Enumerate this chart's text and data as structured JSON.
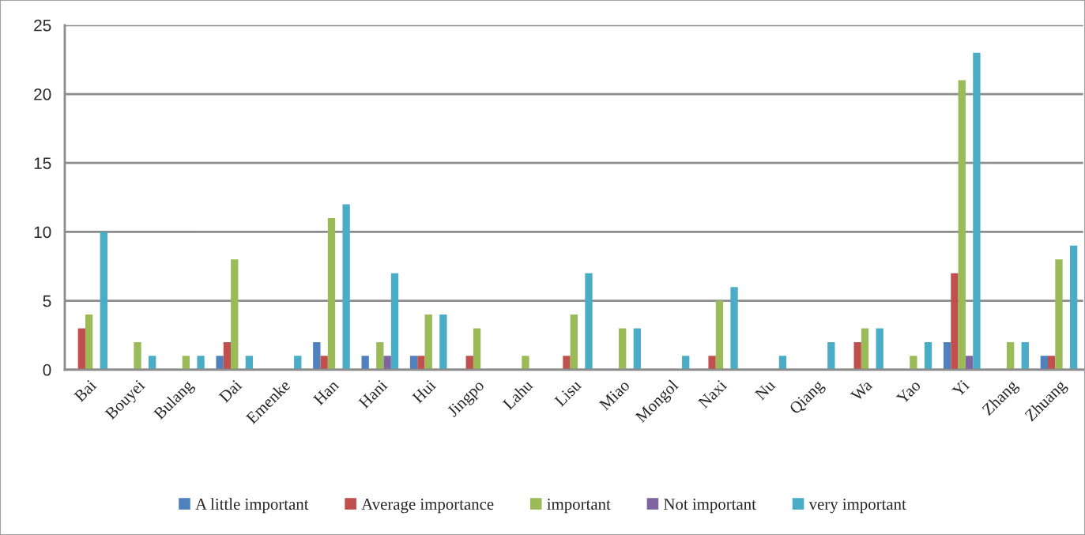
{
  "chart_data": {
    "type": "bar",
    "categories": [
      "Bai",
      "Bouyei",
      "Bulang",
      "Dai",
      "Emenke",
      "Han",
      "Hani",
      "Hui",
      "Jingpo",
      "Lahu",
      "Lisu",
      "Miao",
      "Mongol",
      "Naxi",
      "Nu",
      "Qiang",
      "Wa",
      "Yao",
      "Yi",
      "Zhang",
      "Zhuang"
    ],
    "series": [
      {
        "name": "A little important",
        "color": "#4f81bd",
        "values": [
          null,
          null,
          null,
          1,
          null,
          2,
          1,
          1,
          null,
          null,
          null,
          null,
          null,
          null,
          null,
          null,
          null,
          null,
          2,
          null,
          1
        ]
      },
      {
        "name": "Average importance",
        "color": "#c0504d",
        "values": [
          3,
          null,
          null,
          2,
          null,
          1,
          null,
          1,
          1,
          null,
          1,
          null,
          null,
          1,
          null,
          null,
          2,
          null,
          7,
          null,
          1
        ]
      },
      {
        "name": "important",
        "color": "#9bbb59",
        "values": [
          4,
          2,
          1,
          8,
          null,
          11,
          2,
          4,
          3,
          1,
          4,
          3,
          null,
          5,
          null,
          null,
          3,
          1,
          21,
          2,
          8
        ]
      },
      {
        "name": "Not important",
        "color": "#8064a2",
        "values": [
          null,
          null,
          null,
          null,
          null,
          null,
          1,
          null,
          null,
          null,
          null,
          null,
          null,
          null,
          null,
          null,
          null,
          null,
          1,
          null,
          null
        ]
      },
      {
        "name": "very important",
        "color": "#4bacc6",
        "values": [
          10,
          1,
          1,
          1,
          1,
          12,
          7,
          4,
          null,
          null,
          7,
          3,
          1,
          6,
          1,
          2,
          3,
          2,
          23,
          2,
          9
        ]
      }
    ],
    "ylim": [
      0,
      25
    ],
    "yticks": [
      0,
      5,
      10,
      15,
      20,
      25
    ],
    "grid": "y",
    "legend": "bottom"
  }
}
